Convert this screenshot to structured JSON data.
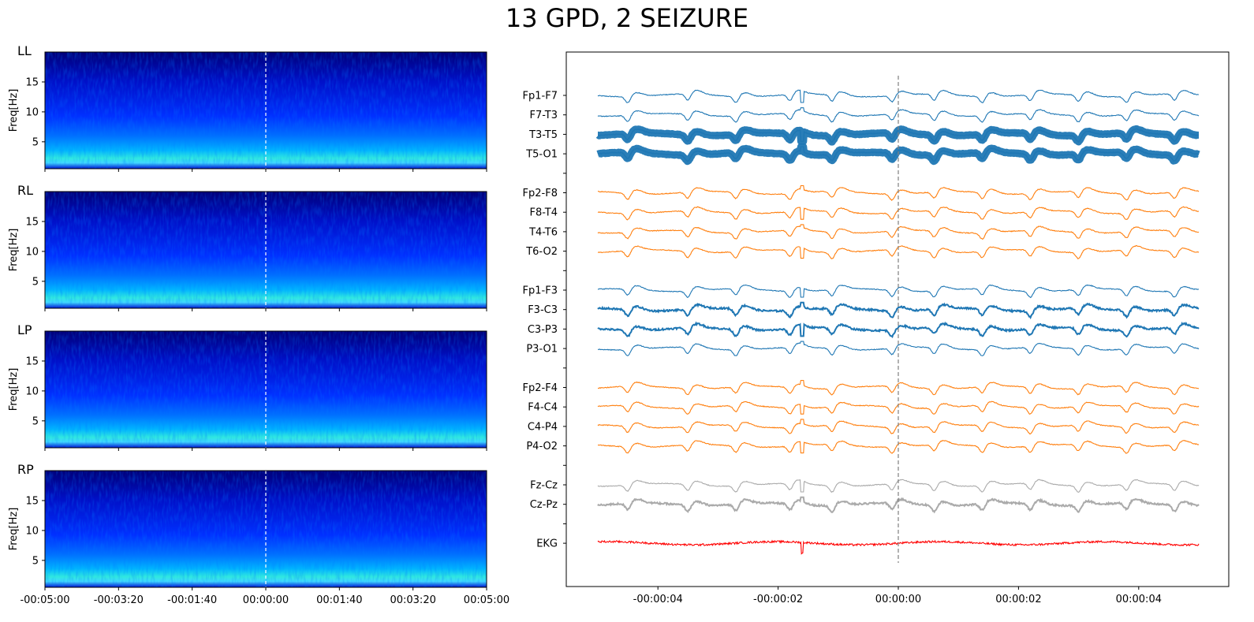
{
  "title": "13 GPD, 2 SEIZURE",
  "chart_data": [
    {
      "type": "heatmap",
      "panels": [
        "LL",
        "RL",
        "LP",
        "RP"
      ],
      "ylabel": "Freq[Hz]",
      "yticks": [
        "5",
        "10",
        "15"
      ],
      "ylim": [
        0.5,
        20
      ],
      "xticks": [
        "-00:05:00",
        "-00:03:20",
        "-00:01:40",
        "00:00:00",
        "00:01:40",
        "00:03:20",
        "00:05:00"
      ],
      "xlim_seconds": [
        -300,
        300
      ],
      "marker_time": "00:00:00",
      "colormap": "jet",
      "description_power": "high power concentrated below ~7 Hz, strongest 1-4 Hz"
    },
    {
      "type": "line",
      "channels": [
        {
          "name": "Fp1-F7",
          "color": "#1f77b4"
        },
        {
          "name": "F7-T3",
          "color": "#1f77b4"
        },
        {
          "name": "T3-T5",
          "color": "#1f77b4"
        },
        {
          "name": "T5-O1",
          "color": "#1f77b4"
        },
        {
          "name": "",
          "color": ""
        },
        {
          "name": "Fp2-F8",
          "color": "#ff7f0e"
        },
        {
          "name": "F8-T4",
          "color": "#ff7f0e"
        },
        {
          "name": "T4-T6",
          "color": "#ff7f0e"
        },
        {
          "name": "T6-O2",
          "color": "#ff7f0e"
        },
        {
          "name": "",
          "color": ""
        },
        {
          "name": "Fp1-F3",
          "color": "#1f77b4"
        },
        {
          "name": "F3-C3",
          "color": "#1f77b4"
        },
        {
          "name": "C3-P3",
          "color": "#1f77b4"
        },
        {
          "name": "P3-O1",
          "color": "#1f77b4"
        },
        {
          "name": "",
          "color": ""
        },
        {
          "name": "Fp2-F4",
          "color": "#ff7f0e"
        },
        {
          "name": "F4-C4",
          "color": "#ff7f0e"
        },
        {
          "name": "C4-P4",
          "color": "#ff7f0e"
        },
        {
          "name": "P4-O2",
          "color": "#ff7f0e"
        },
        {
          "name": "",
          "color": ""
        },
        {
          "name": "Fz-Cz",
          "color": "#aaaaaa"
        },
        {
          "name": "Cz-Pz",
          "color": "#aaaaaa"
        },
        {
          "name": "",
          "color": ""
        },
        {
          "name": "EKG",
          "color": "#ff0000"
        }
      ],
      "xticks": [
        "-00:00:04",
        "-00:00:02",
        "00:00:00",
        "00:00:02",
        "00:00:04"
      ],
      "xlim_seconds": [
        -5,
        5
      ],
      "marker_time": "00:00:00"
    }
  ]
}
